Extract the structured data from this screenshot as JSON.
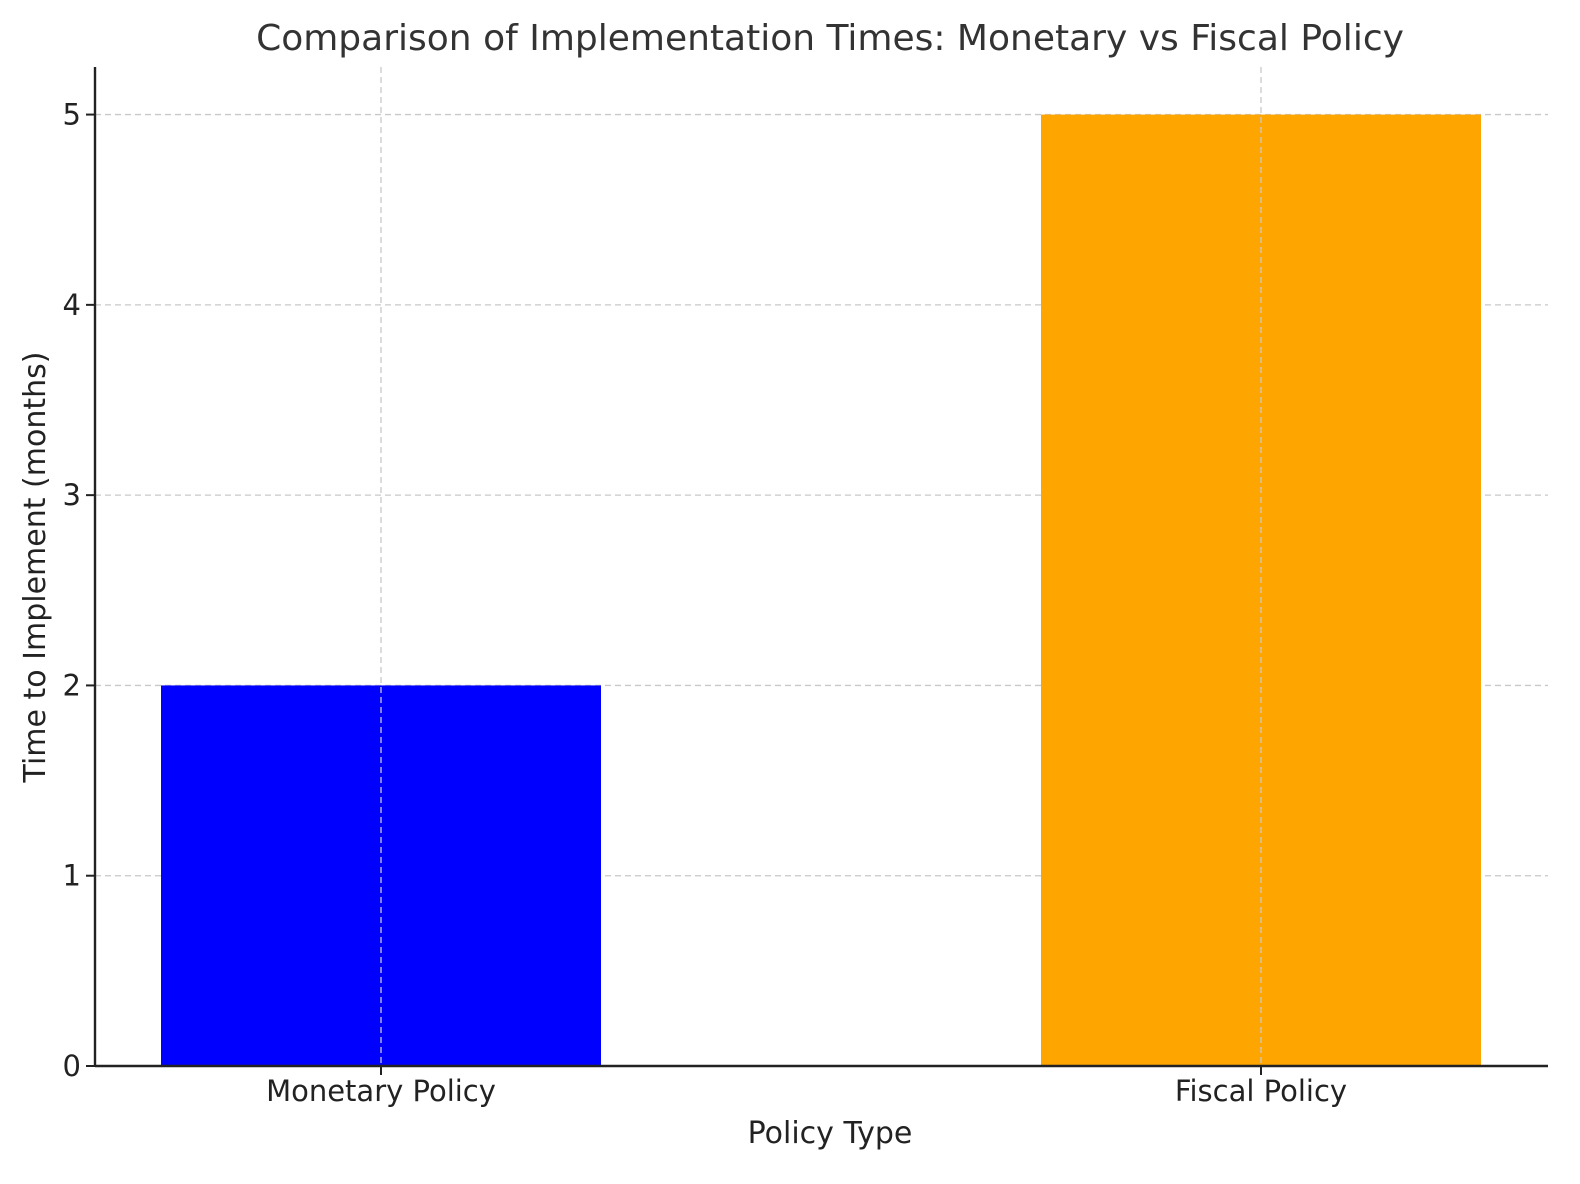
{
  "chart_data": {
    "type": "bar",
    "title": "Comparison of Implementation Times: Monetary vs Fiscal Policy",
    "xlabel": "Policy Type",
    "ylabel": "Time to Implement (months)",
    "categories": [
      "Monetary Policy",
      "Fiscal Policy"
    ],
    "values": [
      2,
      5
    ],
    "colors": [
      "#0000ff",
      "#ffa500"
    ],
    "ylim": [
      0,
      5.25
    ],
    "yticks": [
      0,
      1,
      2,
      3,
      4,
      5
    ],
    "grid": true,
    "grid_color": "#c8c8c8",
    "axis_color": "#222222"
  }
}
